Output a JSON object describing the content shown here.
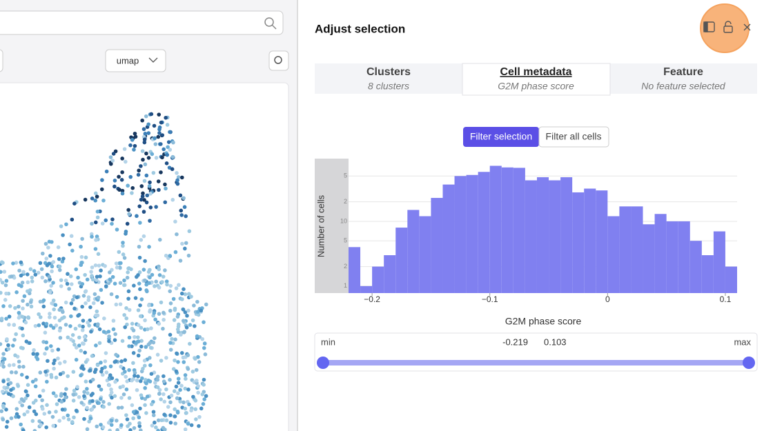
{
  "toolbar": {
    "projection": "umap"
  },
  "panel": {
    "title": "Adjust selection",
    "tabs": [
      {
        "title": "Clusters",
        "subtitle": "8 clusters"
      },
      {
        "title": "Cell metadata",
        "subtitle": "G2M phase score"
      },
      {
        "title": "Feature",
        "subtitle": "No feature selected"
      }
    ],
    "filter_buttons": [
      "Filter selection",
      "Filter all cells"
    ],
    "range": {
      "min_label": "min",
      "low": "-0.219",
      "high": "0.103",
      "max_label": "max"
    }
  },
  "chart_data": {
    "type": "histogram",
    "x_label": "G2M phase score",
    "y_label": "Number of cells",
    "color": "#8080f0",
    "log_y": true,
    "grid": true,
    "bins": [
      -0.22,
      -0.21,
      -0.2,
      -0.19,
      -0.18,
      -0.17,
      -0.16,
      -0.15,
      -0.14,
      -0.13,
      -0.12,
      -0.11,
      -0.1,
      -0.09,
      -0.08,
      -0.07,
      -0.06,
      -0.05,
      -0.04,
      -0.03,
      -0.02,
      -0.01,
      0,
      0.01,
      0.02,
      0.03,
      0.04,
      0.05,
      0.06,
      0.07,
      0.08,
      0.09,
      0.1,
      0.11
    ],
    "values": [
      4,
      1,
      2,
      3,
      8,
      15,
      12,
      23,
      37,
      50,
      52,
      58,
      72,
      68,
      67,
      43,
      48,
      43,
      48,
      28,
      32,
      30,
      12,
      17,
      17,
      9,
      13,
      10,
      10,
      5,
      3,
      7,
      2
    ],
    "xlim": [
      -0.22,
      0.11
    ],
    "ylim": [
      0.78,
      93
    ],
    "xticks": [
      {
        "value": -0.2,
        "label": "−0.2"
      },
      {
        "value": -0.1,
        "label": "−0.1"
      },
      0,
      0.1
    ],
    "yticks": [
      1,
      2,
      5,
      10,
      {
        "value": 20,
        "label": "2"
      },
      {
        "value": 50,
        "label": "5"
      }
    ]
  }
}
